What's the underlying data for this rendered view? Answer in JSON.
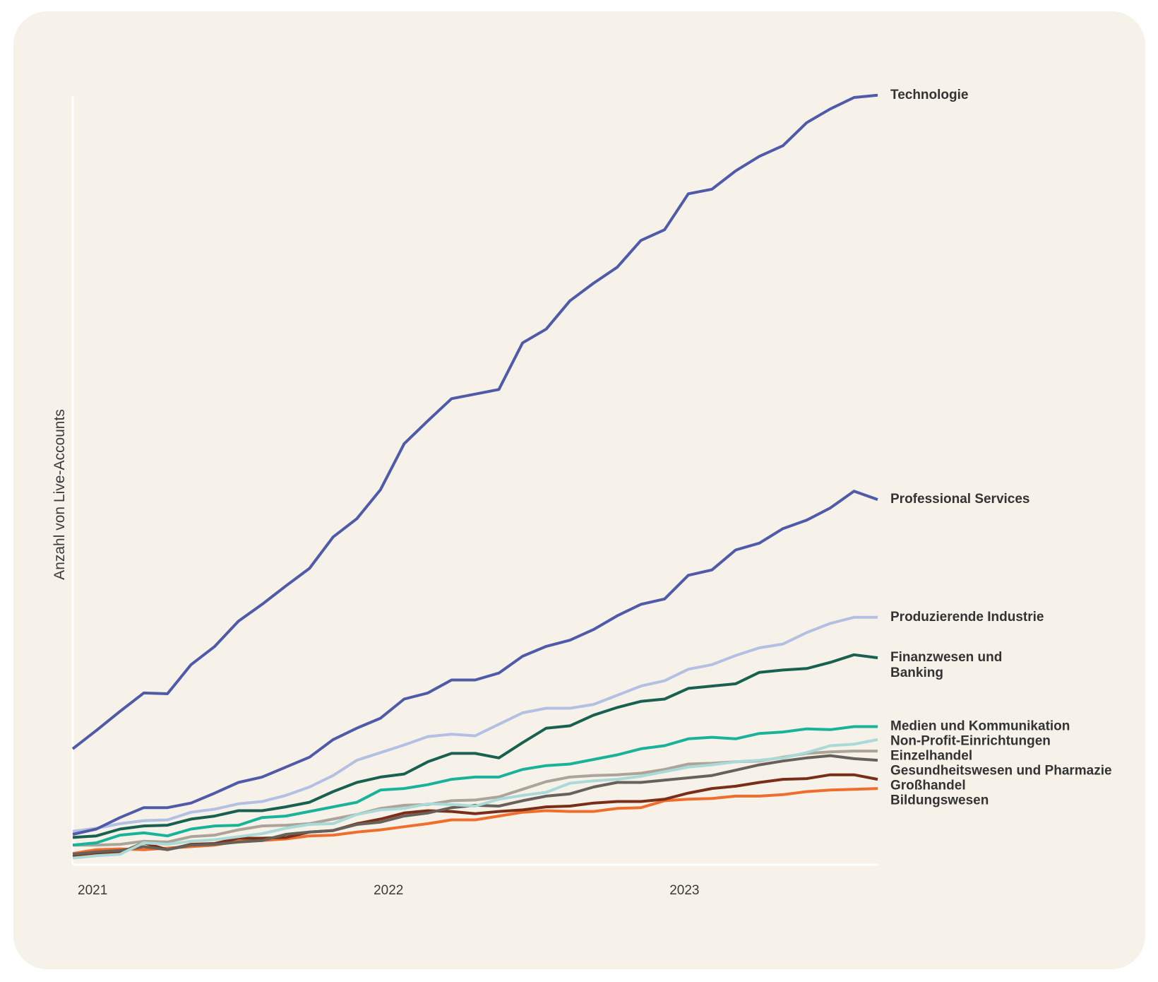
{
  "chart_data": {
    "type": "line",
    "title": "",
    "ylabel": "Anzahl von Live-Accounts",
    "xlabel": "",
    "x_ticks": [
      "2021",
      "2022",
      "2023"
    ],
    "x_tick_positions": [
      0,
      12.5,
      25
    ],
    "ylim": [
      0,
      1000
    ],
    "grid": false,
    "legend": "direct labels at line ends",
    "series": [
      {
        "name": "Technologie",
        "label_lines": [
          "Technologie"
        ],
        "color": "#4f5aa8",
        "values": [
          148,
          172,
          197,
          221,
          220,
          258,
          282,
          315,
          337,
          361,
          384,
          425,
          449,
          487,
          547,
          577,
          606,
          612,
          618,
          679,
          697,
          734,
          757,
          778,
          813,
          827,
          874,
          880,
          904,
          923,
          937,
          967,
          985,
          1000,
          1003
        ]
      },
      {
        "name": "Professional Services",
        "label_lines": [
          "Professional Services"
        ],
        "color": "#4f5aa8",
        "values": [
          36,
          43,
          58,
          71,
          71,
          77,
          90,
          104,
          111,
          124,
          137,
          160,
          175,
          188,
          213,
          221,
          238,
          238,
          247,
          269,
          282,
          290,
          304,
          322,
          337,
          344,
          375,
          382,
          408,
          417,
          436,
          447,
          463,
          485,
          474
        ]
      },
      {
        "name": "Produzierende Industrie",
        "label_lines": [
          "Produzierende Industrie"
        ],
        "color": "#b4c0e3",
        "values": [
          40,
          44,
          50,
          54,
          55,
          65,
          69,
          76,
          79,
          87,
          98,
          113,
          133,
          143,
          153,
          164,
          167,
          165,
          180,
          195,
          201,
          201,
          206,
          218,
          230,
          237,
          252,
          258,
          270,
          280,
          285,
          300,
          312,
          320,
          320
        ]
      },
      {
        "name": "Finanzwesen und Banking",
        "label_lines": [
          "Finanzwesen und",
          "Banking"
        ],
        "color": "#18604f",
        "values": [
          32,
          34,
          43,
          47,
          48,
          56,
          60,
          67,
          67,
          72,
          78,
          92,
          104,
          111,
          115,
          131,
          142,
          142,
          136,
          156,
          175,
          178,
          192,
          202,
          210,
          213,
          227,
          230,
          233,
          248,
          251,
          253,
          261,
          271,
          267
        ]
      },
      {
        "name": "Medien und Kommunikation",
        "label_lines": [
          "Medien und Kommunikation"
        ],
        "color": "#19b39a",
        "values": [
          22,
          25,
          35,
          38,
          34,
          43,
          47,
          48,
          58,
          60,
          66,
          72,
          78,
          94,
          96,
          101,
          108,
          111,
          111,
          121,
          126,
          128,
          134,
          140,
          148,
          152,
          161,
          163,
          161,
          168,
          170,
          174,
          173,
          177,
          177
        ]
      },
      {
        "name": "Non-Profit-Einrichtungen",
        "label_lines": [
          "Non-Profit-Einrichtungen"
        ],
        "color": "#a9dad7",
        "values": [
          5,
          8,
          10,
          25,
          23,
          27,
          29,
          33,
          37,
          44,
          49,
          50,
          62,
          68,
          70,
          76,
          75,
          73,
          82,
          87,
          91,
          103,
          106,
          108,
          112,
          118,
          124,
          127,
          131,
          133,
          136,
          143,
          152,
          154,
          160
        ]
      },
      {
        "name": "Einzelhandel",
        "label_lines": [
          "Einzelhandel"
        ],
        "color": "#aca399",
        "values": [
          22,
          22,
          23,
          27,
          26,
          33,
          35,
          42,
          47,
          48,
          50,
          56,
          62,
          70,
          74,
          75,
          80,
          81,
          85,
          95,
          105,
          111,
          113,
          114,
          116,
          121,
          128,
          129,
          131,
          132,
          137,
          142,
          144,
          145,
          145
        ]
      },
      {
        "name": "Gesundheitswesen und Pharmazie",
        "label_lines": [
          "Gesundheitswesen und Pharmazie"
        ],
        "color": "#686159",
        "values": [
          10,
          13,
          15,
          20,
          16,
          22,
          23,
          26,
          28,
          36,
          39,
          41,
          49,
          52,
          60,
          64,
          71,
          74,
          73,
          80,
          86,
          89,
          98,
          104,
          104,
          107,
          110,
          113,
          120,
          127,
          132,
          136,
          139,
          135,
          133
        ]
      },
      {
        "name": "Großhandel",
        "label_lines": [
          "Großhandel"
        ],
        "color": "#7a2e18",
        "values": [
          7,
          11,
          12,
          25,
          16,
          23,
          24,
          31,
          31,
          32,
          39,
          41,
          50,
          56,
          64,
          67,
          66,
          63,
          66,
          68,
          72,
          73,
          77,
          79,
          79,
          82,
          90,
          96,
          99,
          104,
          108,
          109,
          114,
          114,
          108
        ]
      },
      {
        "name": "Bildungswesen",
        "label_lines": [
          "Bildungswesen"
        ],
        "color": "#f06e2d",
        "values": [
          11,
          16,
          17,
          16,
          18,
          20,
          22,
          27,
          28,
          30,
          34,
          35,
          39,
          42,
          46,
          50,
          55,
          55,
          60,
          65,
          67,
          66,
          66,
          70,
          71,
          80,
          82,
          83,
          86,
          86,
          88,
          92,
          94,
          95,
          96
        ]
      }
    ]
  }
}
